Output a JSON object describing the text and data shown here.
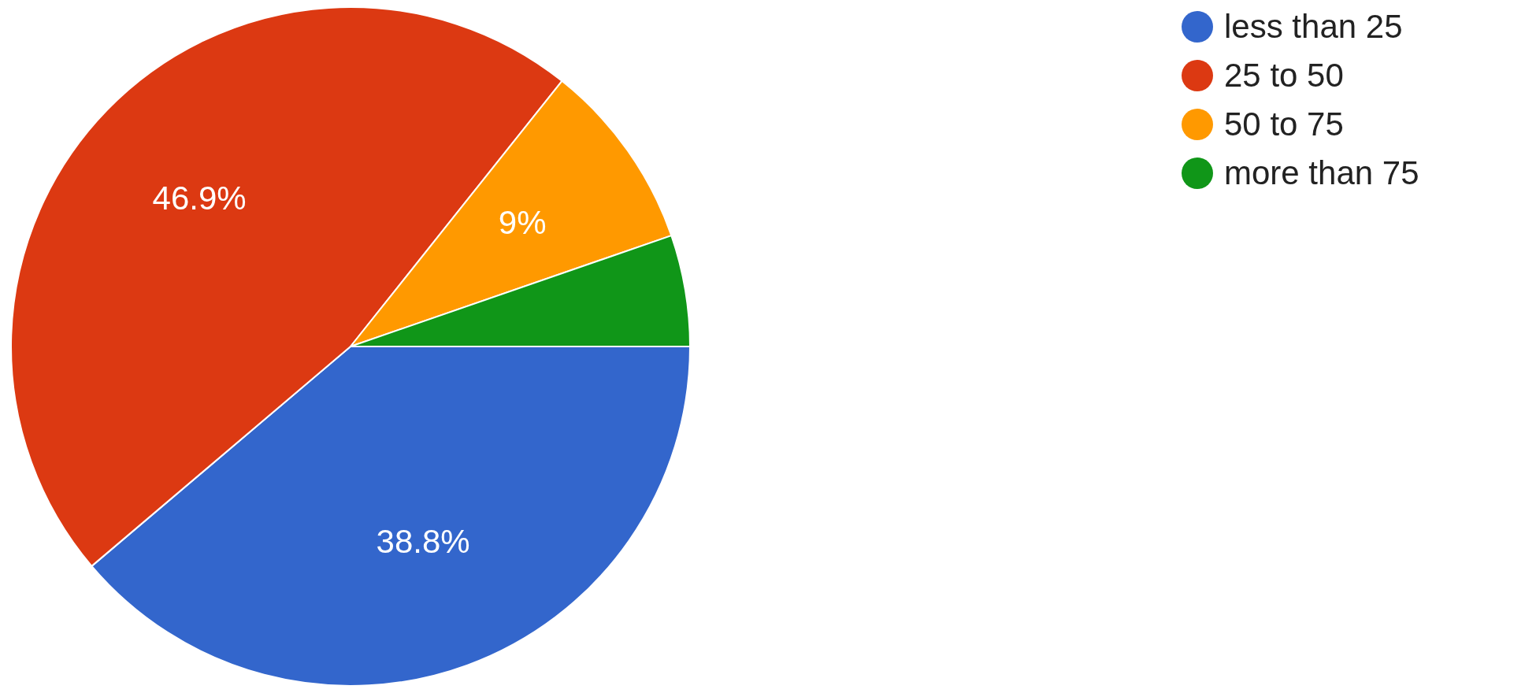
{
  "chart_data": {
    "type": "pie",
    "categories": [
      "less than 25",
      "25 to 50",
      "50 to 75",
      "more than 75"
    ],
    "values": [
      38.8,
      46.9,
      9,
      5.3
    ],
    "value_labels": [
      "38.8%",
      "46.9%",
      "9%",
      null
    ],
    "colors": [
      "#3366cc",
      "#dc3912",
      "#ff9900",
      "#109618"
    ],
    "legend": "top right"
  }
}
